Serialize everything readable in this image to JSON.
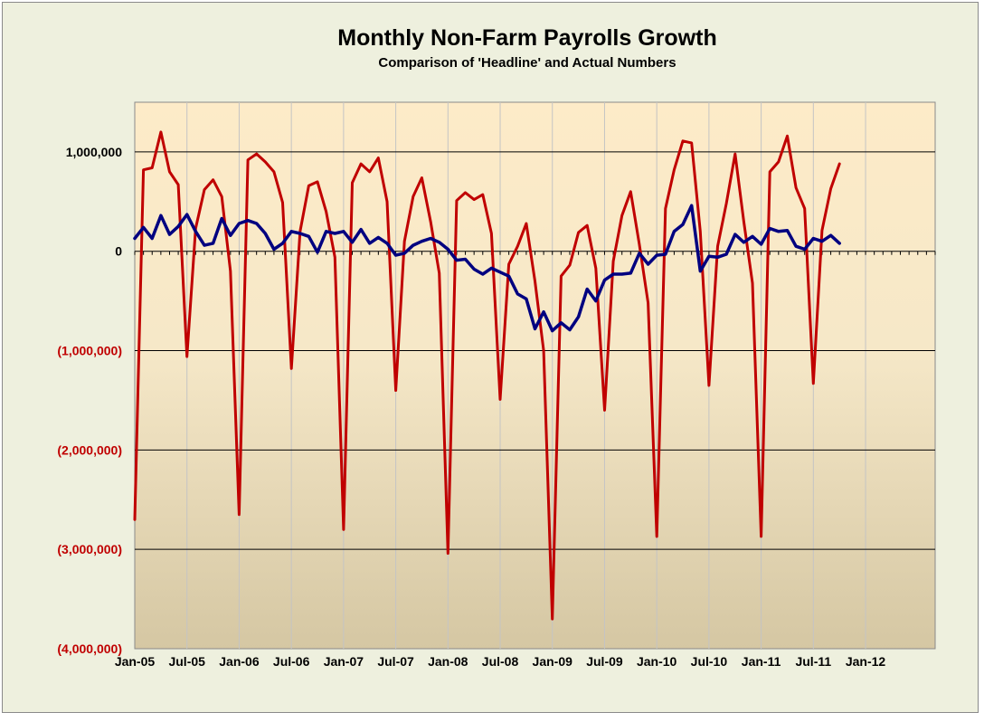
{
  "chart_data": {
    "type": "line",
    "title": "Monthly Non-Farm Payrolls Growth",
    "subtitle": "Comparison of 'Headline' and Actual Numbers",
    "xlabel": "",
    "ylabel": "",
    "ylim": [
      -4000000,
      1500000
    ],
    "y_ticks": [
      1000000,
      0,
      -1000000,
      -2000000,
      -3000000,
      -4000000
    ],
    "y_tick_labels": [
      "1,000,000",
      "0",
      "(1,000,000)",
      "(2,000,000)",
      "(3,000,000)",
      "(4,000,000)"
    ],
    "x_tick_labels": [
      "Jan-05",
      "Jul-05",
      "Jan-06",
      "Jul-06",
      "Jan-07",
      "Jul-07",
      "Jan-08",
      "Jul-08",
      "Jan-09",
      "Jul-09",
      "Jan-10",
      "Jul-10",
      "Jan-11",
      "Jul-11",
      "Jan-12"
    ],
    "x_start": "Jan-05",
    "x_end": "Sep-12",
    "grid": {
      "horizontal": true,
      "vertical": true
    },
    "legend": "none",
    "colors": {
      "plot_top": "#fdebc8",
      "plot_bottom": "#d5c7a3",
      "frame_bg": "#eef0de",
      "negative_tick_label": "#c00000",
      "positive_tick_label": "#000000"
    },
    "series": [
      {
        "color": "#c00000",
        "values": [
          -2700000,
          820000,
          840000,
          1200000,
          800000,
          670000,
          -1060000,
          230000,
          620000,
          720000,
          550000,
          -200000,
          -2650000,
          920000,
          980000,
          900000,
          800000,
          490000,
          -1180000,
          200000,
          660000,
          700000,
          400000,
          -60000,
          -2800000,
          690000,
          880000,
          800000,
          940000,
          500000,
          -1400000,
          100000,
          550000,
          740000,
          300000,
          -220000,
          -3040000,
          510000,
          590000,
          520000,
          570000,
          180000,
          -1490000,
          -130000,
          50000,
          280000,
          -300000,
          -1000000,
          -3700000,
          -250000,
          -140000,
          190000,
          260000,
          -170000,
          -1600000,
          -100000,
          360000,
          600000,
          70000,
          -520000,
          -2870000,
          430000,
          820000,
          1110000,
          1090000,
          200000,
          -1350000,
          50000,
          480000,
          980000,
          300000,
          -320000,
          -2870000,
          800000,
          900000,
          1160000,
          640000,
          430000,
          -1330000,
          210000,
          630000,
          880000
        ]
      },
      {
        "color": "#000080",
        "values": [
          130000,
          240000,
          130000,
          360000,
          170000,
          250000,
          370000,
          200000,
          60000,
          80000,
          330000,
          160000,
          280000,
          310000,
          280000,
          180000,
          20000,
          80000,
          200000,
          180000,
          150000,
          -10000,
          200000,
          180000,
          200000,
          90000,
          220000,
          80000,
          140000,
          80000,
          -40000,
          -20000,
          60000,
          100000,
          130000,
          90000,
          20000,
          -90000,
          -80000,
          -180000,
          -230000,
          -170000,
          -210000,
          -250000,
          -430000,
          -480000,
          -780000,
          -610000,
          -800000,
          -720000,
          -790000,
          -660000,
          -380000,
          -500000,
          -290000,
          -230000,
          -230000,
          -220000,
          -20000,
          -130000,
          -40000,
          -30000,
          200000,
          270000,
          460000,
          -200000,
          -50000,
          -60000,
          -30000,
          170000,
          90000,
          150000,
          70000,
          230000,
          200000,
          210000,
          50000,
          20000,
          130000,
          100000,
          160000,
          80000
        ]
      }
    ]
  }
}
